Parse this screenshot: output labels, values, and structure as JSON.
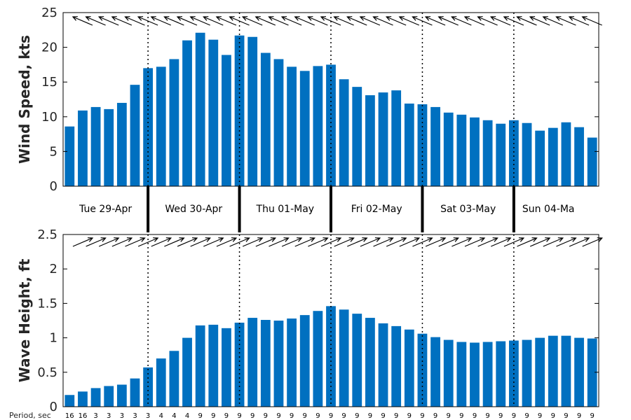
{
  "chart_data": [
    {
      "type": "bar",
      "ylabel": "Wind Speed, kts",
      "ylim": [
        0,
        25
      ],
      "yticks": [
        "0",
        "5",
        "10",
        "15",
        "20",
        "25"
      ],
      "color": "#0070c0",
      "values": [
        8.6,
        10.9,
        11.4,
        11.1,
        12.0,
        14.6,
        17.0,
        17.2,
        18.3,
        21.0,
        22.1,
        21.1,
        18.9,
        21.7,
        21.5,
        19.2,
        18.3,
        17.2,
        16.6,
        17.3,
        17.5,
        15.4,
        14.3,
        13.1,
        13.5,
        13.8,
        11.9,
        11.8,
        11.4,
        10.6,
        10.3,
        9.9,
        9.5,
        9.0,
        9.5,
        9.1,
        8.0,
        8.4,
        9.2,
        8.5,
        7.0
      ],
      "arrow_direction": "toward upper-left",
      "grid": false
    },
    {
      "type": "bar",
      "ylabel": "Wave Height, ft",
      "ylim": [
        0,
        2.5
      ],
      "yticks": [
        "0",
        "0.5",
        "1",
        "1.5",
        "2",
        "2.5"
      ],
      "color": "#0070c0",
      "values": [
        0.17,
        0.22,
        0.27,
        0.3,
        0.32,
        0.41,
        0.57,
        0.7,
        0.81,
        1.0,
        1.18,
        1.19,
        1.14,
        1.22,
        1.29,
        1.26,
        1.25,
        1.28,
        1.33,
        1.39,
        1.46,
        1.41,
        1.35,
        1.29,
        1.21,
        1.17,
        1.12,
        1.06,
        1.01,
        0.97,
        0.94,
        0.93,
        0.94,
        0.95,
        0.96,
        0.97,
        1.0,
        1.03,
        1.03,
        1.0,
        0.99
      ],
      "arrow_direction": "toward upper-right",
      "grid": false
    }
  ],
  "days": [
    "Tue 29-Apr",
    "Wed 30-Apr",
    "Thu 01-May",
    "Fri 02-May",
    "Sat 03-May",
    "Sun 04-Ma"
  ],
  "period_label": "Period, sec",
  "periods": [
    "16",
    "16",
    "3",
    "3",
    "3",
    "3",
    "3",
    "4",
    "4",
    "4",
    "9",
    "9",
    "9",
    "9",
    "9",
    "9",
    "9",
    "9",
    "9",
    "9",
    "9",
    "9",
    "9",
    "9",
    "9",
    "9",
    "9",
    "9",
    "9",
    "9",
    "9",
    "9",
    "9",
    "9",
    "9",
    "9",
    "9",
    "9",
    "9",
    "9",
    "9"
  ]
}
